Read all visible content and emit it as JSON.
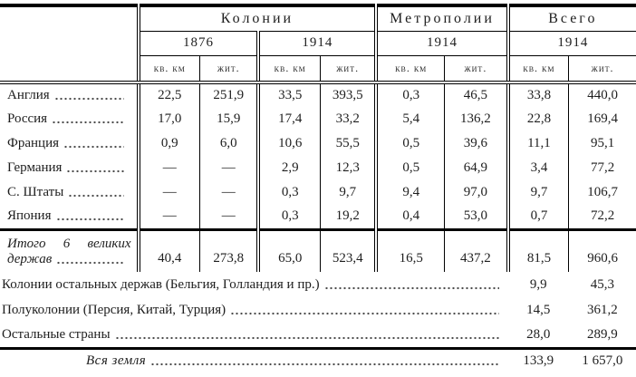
{
  "table": {
    "title_groups": {
      "colonies": "Колонии",
      "metropolises": "Метрополии",
      "total": "Всего"
    },
    "years": {
      "colonies_1876": "1876",
      "colonies_1914": "1914",
      "metropolises_1914": "1914",
      "total_1914": "1914"
    },
    "units": {
      "km": "кв. км",
      "zhit": "жит."
    },
    "rows": [
      {
        "label": "Англия",
        "values": [
          "22,5",
          "251,9",
          "33,5",
          "393,5",
          "0,3",
          "46,5",
          "33,8",
          "440,0"
        ]
      },
      {
        "label": "Россия",
        "values": [
          "17,0",
          "15,9",
          "17,4",
          "33,2",
          "5,4",
          "136,2",
          "22,8",
          "169,4"
        ]
      },
      {
        "label": "Франция",
        "values": [
          "0,9",
          "6,0",
          "10,6",
          "55,5",
          "0,5",
          "39,6",
          "11,1",
          "95,1"
        ]
      },
      {
        "label": "Германия",
        "values": [
          "—",
          "—",
          "2,9",
          "12,3",
          "0,5",
          "64,9",
          "3,4",
          "77,2"
        ]
      },
      {
        "label": "С. Штаты",
        "values": [
          "—",
          "—",
          "0,3",
          "9,7",
          "9,4",
          "97,0",
          "9,7",
          "106,7"
        ]
      },
      {
        "label": "Япония",
        "values": [
          "—",
          "—",
          "0,3",
          "19,2",
          "0,4",
          "53,0",
          "0,7",
          "72,2"
        ]
      }
    ],
    "total_row": {
      "label_word1": "Итого",
      "label_word2": "6",
      "label_word3": "великих",
      "label_line2": "держав",
      "values": [
        "40,4",
        "273,8",
        "65,0",
        "523,4",
        "16,5",
        "437,2",
        "81,5",
        "960,6"
      ]
    },
    "bottom_rows": [
      {
        "label": "Колонии остальных держав (Бельгия, Голландия и пр.)",
        "km": "9,9",
        "zhit": "45,3"
      },
      {
        "label": "Полуколонии (Персия, Китай, Турция)",
        "km": "14,5",
        "zhit": "361,2"
      },
      {
        "label": "Остальные страны",
        "km": "28,0",
        "zhit": "289,9"
      }
    ],
    "footer_row": {
      "label": "Вся земля",
      "km": "133,9",
      "zhit": "1 657,0"
    }
  }
}
